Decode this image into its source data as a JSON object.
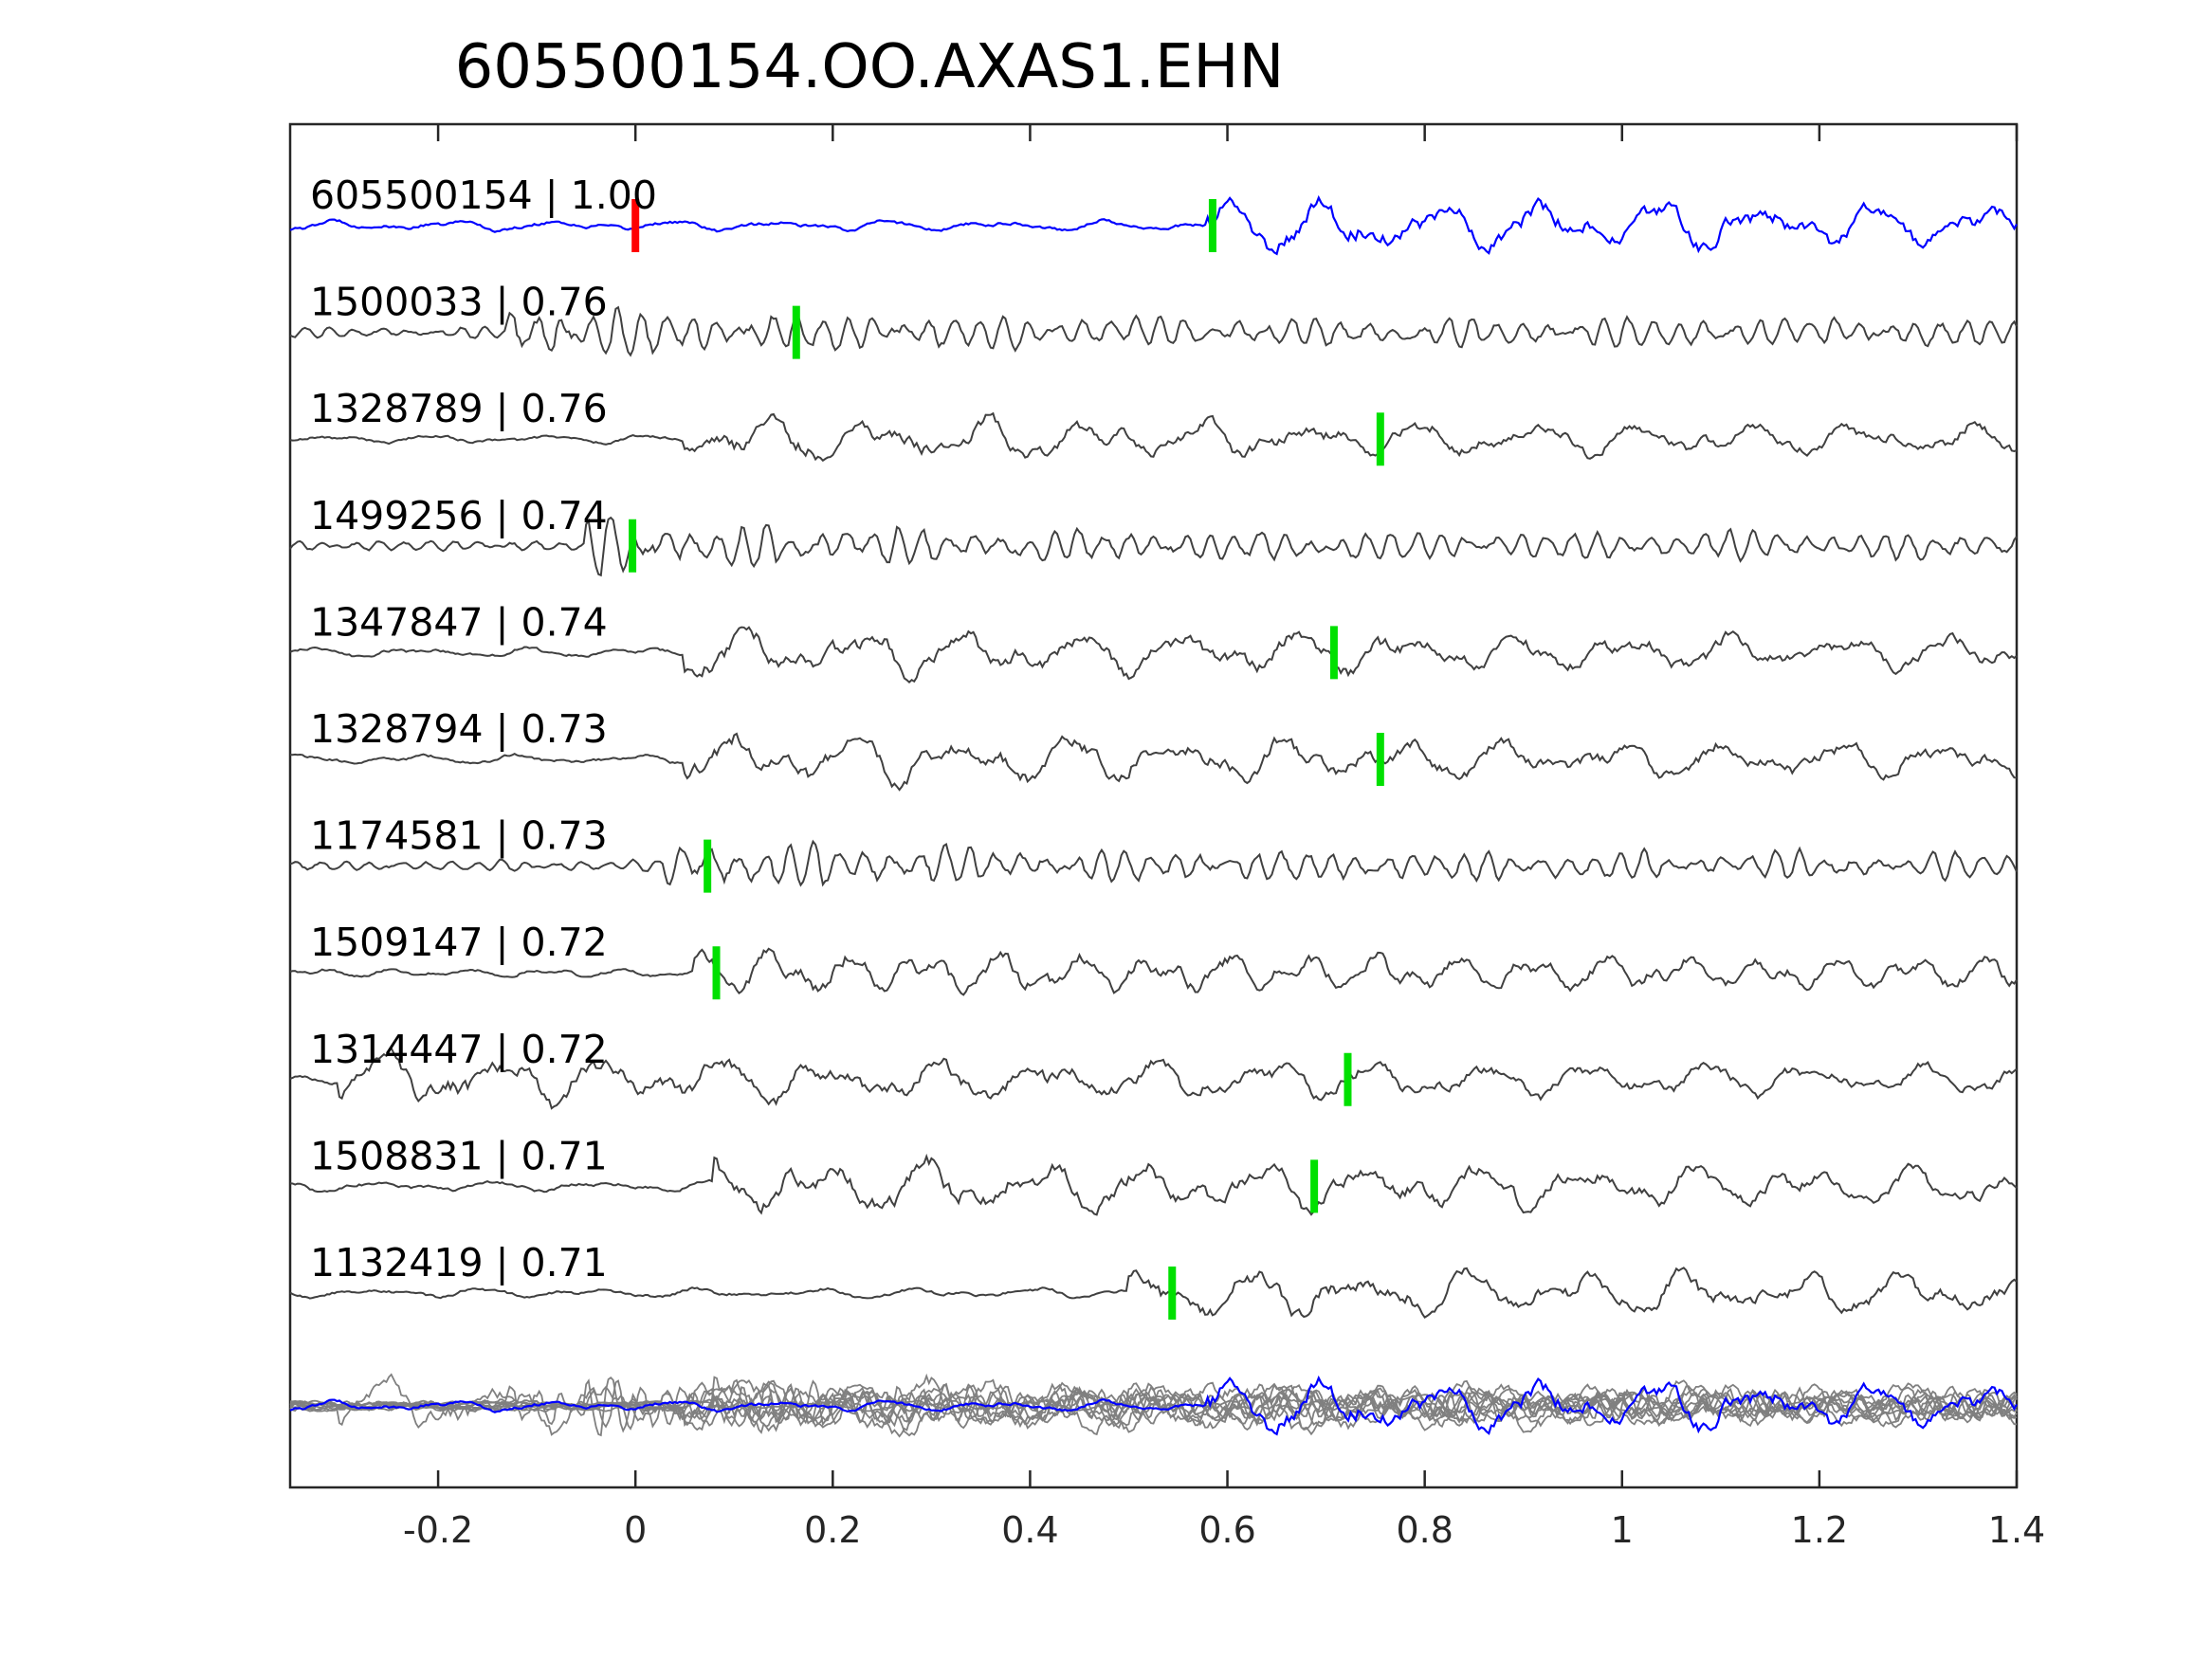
{
  "chart_data": {
    "type": "line",
    "title": "605500154.OO.AXAS1.EHN",
    "xlabel": "",
    "ylabel": "",
    "xlim": [
      -0.35,
      1.4
    ],
    "x_ticks": [
      -0.2,
      0,
      0.2,
      0.4,
      0.6,
      0.8,
      1,
      1.2,
      1.4
    ],
    "x_tick_labels": [
      "-0.2",
      "0",
      "0.2",
      "0.4",
      "0.6",
      "0.8",
      "1",
      "1.2",
      "1.4"
    ],
    "grid": false,
    "template_color": "#0000ff",
    "trace_color": "#404040",
    "overlay_color": "#808080",
    "template_pick_color": "#ff0000",
    "pick_color": "#00e000",
    "traces": [
      {
        "label": "605500154 | 1.00",
        "event": "605500154",
        "cc": 1.0,
        "reference_pick": 0.0,
        "pick": 0.585,
        "onset": 0.58,
        "wave": "slow",
        "amplitude": 0.55,
        "template": true
      },
      {
        "label": "1500033 | 0.76",
        "event": "1500033",
        "cc": 0.76,
        "pick": 0.163,
        "onset": -0.13,
        "wave": "fast",
        "amplitude": 0.55
      },
      {
        "label": "1328789 | 0.76",
        "event": "1328789",
        "cc": 0.76,
        "pick": 0.755,
        "onset": 0.05,
        "wave": "slow",
        "amplitude": 0.45
      },
      {
        "label": "1499256 | 0.74",
        "event": "1499256",
        "cc": 0.74,
        "pick": -0.003,
        "onset": -0.05,
        "wave": "fast",
        "amplitude": 0.55
      },
      {
        "label": "1347847 | 0.74",
        "event": "1347847",
        "cc": 0.74,
        "pick": 0.708,
        "onset": 0.05,
        "wave": "slow",
        "amplitude": 0.5
      },
      {
        "label": "1328794 | 0.73",
        "event": "1328794",
        "cc": 0.73,
        "pick": 0.755,
        "onset": 0.05,
        "wave": "slow",
        "amplitude": 0.5
      },
      {
        "label": "1174581 | 0.73",
        "event": "1174581",
        "cc": 0.73,
        "pick": 0.073,
        "onset": 0.03,
        "wave": "fast",
        "amplitude": 0.55
      },
      {
        "label": "1509147 | 0.72",
        "event": "1509147",
        "cc": 0.72,
        "pick": 0.082,
        "onset": 0.06,
        "wave": "sparse",
        "amplitude": 0.45
      },
      {
        "label": "1314447 | 0.72",
        "event": "1314447",
        "cc": 0.72,
        "pick": 0.722,
        "onset": -0.3,
        "wave": "slow",
        "amplitude": 0.5
      },
      {
        "label": "1508831 | 0.71",
        "event": "1508831",
        "cc": 0.71,
        "pick": 0.688,
        "onset": 0.08,
        "wave": "slow",
        "amplitude": 0.55
      },
      {
        "label": "1132419 | 0.71",
        "event": "1132419",
        "cc": 0.71,
        "pick": 0.544,
        "onset": 0.5,
        "wave": "slow",
        "amplitude": 0.5
      }
    ]
  }
}
